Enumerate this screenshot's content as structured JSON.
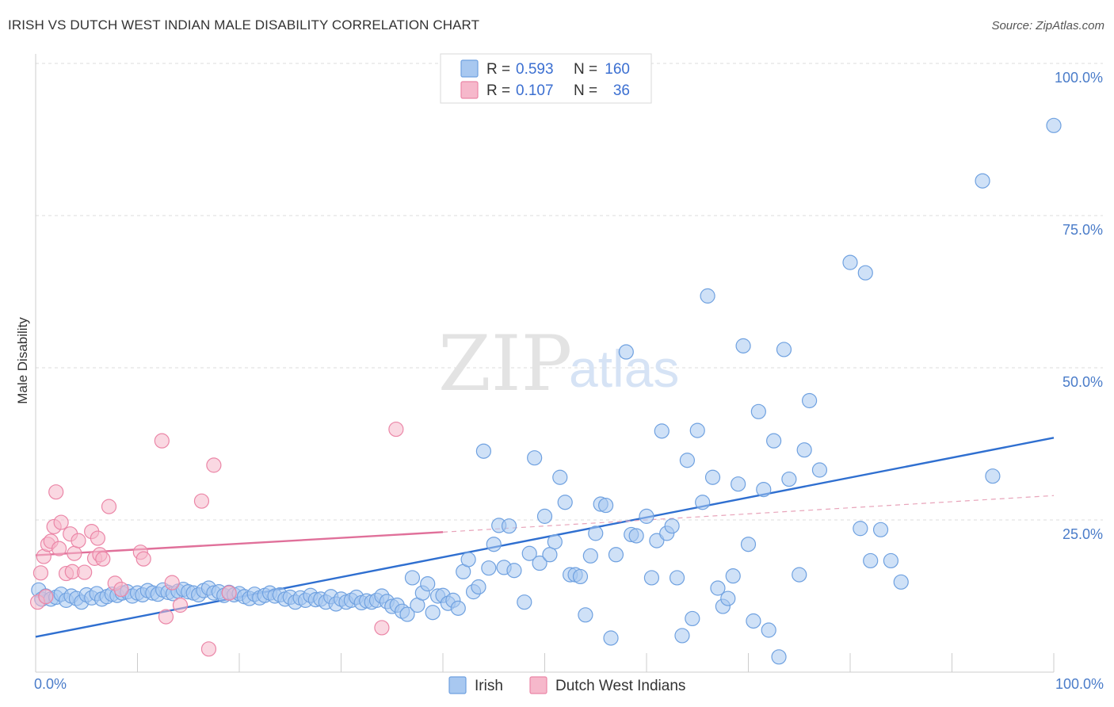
{
  "header": {
    "title": "IRISH VS DUTCH WEST INDIAN MALE DISABILITY CORRELATION CHART",
    "source": "Source: ZipAtlas.com"
  },
  "watermark": {
    "zip": "ZIP",
    "atlas": "atlas"
  },
  "legend": {
    "rows": [
      {
        "r_label": "R =",
        "r_value": "0.593",
        "n_label": "N =",
        "n_value": "160",
        "color": "#a8c8f0"
      },
      {
        "r_label": "R =",
        "r_value": "0.107",
        "n_label": "N =",
        "n_value": "36",
        "color": "#f6b8cb"
      }
    ]
  },
  "bottom_legend": {
    "items": [
      {
        "label": "Irish",
        "color": "#a8c8f0"
      },
      {
        "label": "Dutch West Indians",
        "color": "#f6b8cb"
      }
    ]
  },
  "chart_data": {
    "type": "scatter",
    "title": "IRISH VS DUTCH WEST INDIAN MALE DISABILITY CORRELATION CHART",
    "ylabel": "Male Disability",
    "xlabel": "",
    "xlim": [
      0,
      100
    ],
    "ylim": [
      0,
      100
    ],
    "x_tick_labels": [
      "0.0%",
      "100.0%"
    ],
    "y_ticks": [
      25,
      50,
      75,
      100
    ],
    "y_tick_labels": [
      "25.0%",
      "50.0%",
      "75.0%",
      "100.0%"
    ],
    "grid": "horizontal dashed",
    "legend_position": "top-center",
    "series": [
      {
        "name": "Irish",
        "color": "#6fa1e0",
        "fill": "#a8c8f0",
        "r": 0.593,
        "n": 160,
        "trend": {
          "x": [
            0,
            100
          ],
          "y": [
            5.8,
            38.5
          ],
          "dashed_to": null
        },
        "points": [
          [
            0.3,
            13.5
          ],
          [
            0.6,
            12
          ],
          [
            1,
            12.5
          ],
          [
            1.5,
            12
          ],
          [
            2,
            12.3
          ],
          [
            2.5,
            12.8
          ],
          [
            3,
            11.8
          ],
          [
            3.5,
            12.5
          ],
          [
            4,
            12.1
          ],
          [
            4.5,
            11.5
          ],
          [
            5,
            12.7
          ],
          [
            5.5,
            12.2
          ],
          [
            6,
            12.9
          ],
          [
            6.5,
            12
          ],
          [
            7,
            12.4
          ],
          [
            7.5,
            12.8
          ],
          [
            8,
            12.6
          ],
          [
            8.5,
            13
          ],
          [
            9,
            13.2
          ],
          [
            9.5,
            12.5
          ],
          [
            10,
            13
          ],
          [
            10.5,
            12.7
          ],
          [
            11,
            13.4
          ],
          [
            11.5,
            13
          ],
          [
            12,
            12.8
          ],
          [
            12.5,
            13.5
          ],
          [
            13,
            13.1
          ],
          [
            13.5,
            12.9
          ],
          [
            14,
            13.3
          ],
          [
            14.5,
            13.6
          ],
          [
            15,
            13.2
          ],
          [
            15.5,
            13
          ],
          [
            16,
            12.7
          ],
          [
            16.5,
            13.4
          ],
          [
            17,
            13.8
          ],
          [
            17.5,
            13
          ],
          [
            18,
            13.2
          ],
          [
            18.5,
            12.6
          ],
          [
            19,
            13.1
          ],
          [
            19.5,
            12.7
          ],
          [
            20,
            12.9
          ],
          [
            20.5,
            12.4
          ],
          [
            21,
            12.1
          ],
          [
            21.5,
            12.8
          ],
          [
            22,
            12.2
          ],
          [
            22.5,
            12.6
          ],
          [
            23,
            13
          ],
          [
            23.5,
            12.5
          ],
          [
            24,
            12.7
          ],
          [
            24.5,
            12
          ],
          [
            25,
            12.3
          ],
          [
            25.5,
            11.5
          ],
          [
            26,
            12.2
          ],
          [
            26.5,
            11.8
          ],
          [
            27,
            12.6
          ],
          [
            27.5,
            11.9
          ],
          [
            28,
            12
          ],
          [
            28.5,
            11.5
          ],
          [
            29,
            12.4
          ],
          [
            29.5,
            11.2
          ],
          [
            30,
            12
          ],
          [
            30.5,
            11.5
          ],
          [
            31,
            11.8
          ],
          [
            31.5,
            12.3
          ],
          [
            32,
            11.4
          ],
          [
            32.5,
            11.7
          ],
          [
            33,
            11.5
          ],
          [
            33.5,
            11.8
          ],
          [
            34,
            12.5
          ],
          [
            34.5,
            11.6
          ],
          [
            35,
            10.8
          ],
          [
            35.5,
            11
          ],
          [
            36,
            10
          ],
          [
            36.5,
            9.5
          ],
          [
            37,
            15.5
          ],
          [
            37.5,
            11
          ],
          [
            38,
            13
          ],
          [
            38.5,
            14.5
          ],
          [
            39,
            9.8
          ],
          [
            39.5,
            12.5
          ],
          [
            40,
            12.6
          ],
          [
            40.5,
            11.3
          ],
          [
            41,
            11.8
          ],
          [
            41.5,
            10.5
          ],
          [
            42,
            16.5
          ],
          [
            42.5,
            18.5
          ],
          [
            43,
            13.2
          ],
          [
            43.5,
            14
          ],
          [
            44,
            36.3
          ],
          [
            44.5,
            17.1
          ],
          [
            45,
            21
          ],
          [
            45.5,
            24.1
          ],
          [
            46,
            17.2
          ],
          [
            46.5,
            24
          ],
          [
            47,
            16.7
          ],
          [
            48,
            11.5
          ],
          [
            48.5,
            19.5
          ],
          [
            49,
            35.2
          ],
          [
            49.5,
            17.9
          ],
          [
            50,
            25.6
          ],
          [
            50.5,
            19.3
          ],
          [
            51,
            21.4
          ],
          [
            51.5,
            32
          ],
          [
            52,
            27.9
          ],
          [
            52.5,
            16
          ],
          [
            53,
            16
          ],
          [
            53.5,
            15.7
          ],
          [
            54,
            9.4
          ],
          [
            54.5,
            19.1
          ],
          [
            55,
            22.8
          ],
          [
            55.5,
            27.6
          ],
          [
            56,
            27.4
          ],
          [
            56.5,
            5.6
          ],
          [
            57,
            19.3
          ],
          [
            58,
            52.6
          ],
          [
            58.5,
            22.6
          ],
          [
            59,
            22.4
          ],
          [
            60,
            25.6
          ],
          [
            60.5,
            15.5
          ],
          [
            61,
            21.6
          ],
          [
            61.5,
            39.6
          ],
          [
            62,
            22.8
          ],
          [
            62.5,
            24
          ],
          [
            63,
            15.5
          ],
          [
            63.5,
            6
          ],
          [
            64,
            34.8
          ],
          [
            64.5,
            8.8
          ],
          [
            65,
            39.7
          ],
          [
            65.5,
            27.9
          ],
          [
            66,
            61.8
          ],
          [
            66.5,
            32
          ],
          [
            67,
            13.8
          ],
          [
            67.5,
            10.8
          ],
          [
            68,
            12.1
          ],
          [
            68.5,
            15.8
          ],
          [
            69,
            30.9
          ],
          [
            69.5,
            53.6
          ],
          [
            70,
            21
          ],
          [
            70.5,
            8.4
          ],
          [
            71,
            42.8
          ],
          [
            71.5,
            30
          ],
          [
            72,
            6.9
          ],
          [
            72.5,
            38
          ],
          [
            73,
            2.5
          ],
          [
            73.5,
            53
          ],
          [
            74,
            31.7
          ],
          [
            75,
            16
          ],
          [
            75.5,
            36.5
          ],
          [
            76,
            44.6
          ],
          [
            77,
            33.2
          ],
          [
            80,
            67.3
          ],
          [
            81,
            23.6
          ],
          [
            81.5,
            65.6
          ],
          [
            82,
            18.3
          ],
          [
            83,
            23.4
          ],
          [
            84,
            18.3
          ],
          [
            85,
            14.8
          ],
          [
            93,
            80.7
          ],
          [
            94,
            32.2
          ],
          [
            100,
            89.8
          ]
        ]
      },
      {
        "name": "Dutch West Indians",
        "color": "#eb86a7",
        "fill": "#f6b8cb",
        "r": 0.107,
        "n": 36,
        "trend": {
          "x": [
            0,
            40
          ],
          "y": [
            19.2,
            23
          ],
          "dashed_to": [
            100,
            29
          ]
        },
        "points": [
          [
            0.2,
            11.5
          ],
          [
            0.5,
            16.3
          ],
          [
            0.8,
            19
          ],
          [
            1,
            12.4
          ],
          [
            1.2,
            21
          ],
          [
            1.5,
            21.5
          ],
          [
            1.8,
            23.9
          ],
          [
            2,
            29.6
          ],
          [
            2.3,
            20.3
          ],
          [
            2.5,
            24.6
          ],
          [
            3,
            16.2
          ],
          [
            3.4,
            22.7
          ],
          [
            3.6,
            16.5
          ],
          [
            3.8,
            19.5
          ],
          [
            4.2,
            21.6
          ],
          [
            4.8,
            16.4
          ],
          [
            5.5,
            23.1
          ],
          [
            5.8,
            18.7
          ],
          [
            6.1,
            22
          ],
          [
            6.3,
            19.3
          ],
          [
            6.6,
            18.6
          ],
          [
            7.2,
            27.2
          ],
          [
            7.8,
            14.6
          ],
          [
            8.4,
            13.6
          ],
          [
            10.3,
            19.7
          ],
          [
            10.6,
            18.6
          ],
          [
            12.4,
            38
          ],
          [
            12.8,
            9.1
          ],
          [
            13.4,
            14.7
          ],
          [
            14.2,
            11
          ],
          [
            16.3,
            28.1
          ],
          [
            17,
            3.8
          ],
          [
            17.5,
            34
          ],
          [
            19,
            13
          ],
          [
            34,
            7.3
          ],
          [
            35.4,
            39.9
          ]
        ]
      }
    ]
  }
}
